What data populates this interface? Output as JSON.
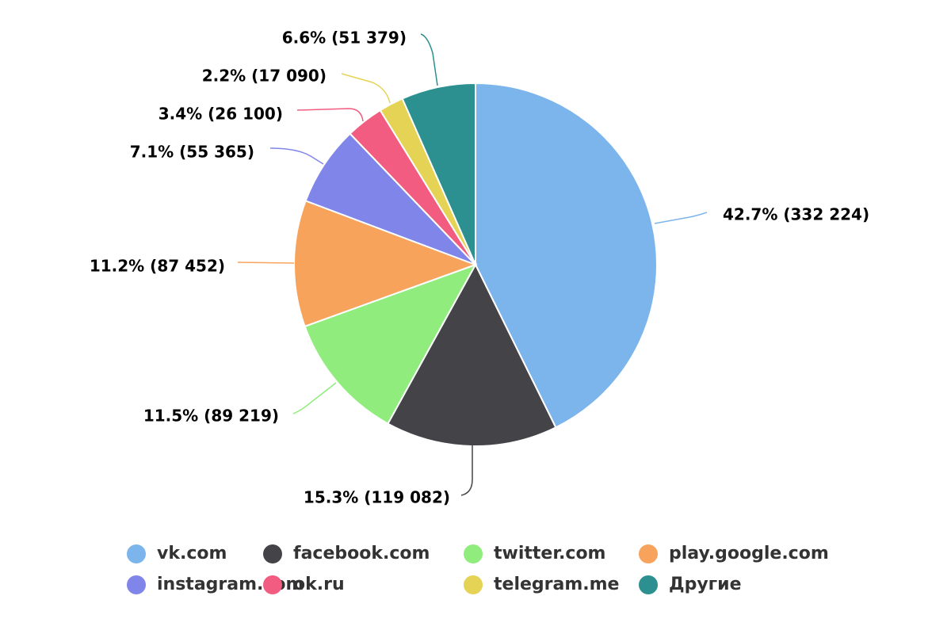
{
  "chart_data": {
    "type": "pie",
    "title": "",
    "slices": [
      {
        "name": "vk.com",
        "value": 332224,
        "percent": 42.7,
        "label": "42.7% (332 224)",
        "color": "#7cb5ec"
      },
      {
        "name": "facebook.com",
        "value": 119082,
        "percent": 15.3,
        "label": "15.3% (119 082)",
        "color": "#434348"
      },
      {
        "name": "twitter.com",
        "value": 89219,
        "percent": 11.5,
        "label": "11.5% (89 219)",
        "color": "#90ed7d"
      },
      {
        "name": "play.google.com",
        "value": 87452,
        "percent": 11.2,
        "label": "11.2% (87 452)",
        "color": "#f7a35c"
      },
      {
        "name": "instagram.com",
        "value": 55365,
        "percent": 7.1,
        "label": "7.1% (55 365)",
        "color": "#8085e9"
      },
      {
        "name": "ok.ru",
        "value": 26100,
        "percent": 3.4,
        "label": "3.4% (26 100)",
        "color": "#f15c80"
      },
      {
        "name": "telegram.me",
        "value": 17090,
        "percent": 2.2,
        "label": "2.2% (17 090)",
        "color": "#e4d354"
      },
      {
        "name": "Другие",
        "value": 51379,
        "percent": 6.6,
        "label": "6.6% (51 379)",
        "color": "#2b908f"
      }
    ],
    "start_angle_deg": 0,
    "direction": "clockwise",
    "legend_position": "bottom"
  }
}
